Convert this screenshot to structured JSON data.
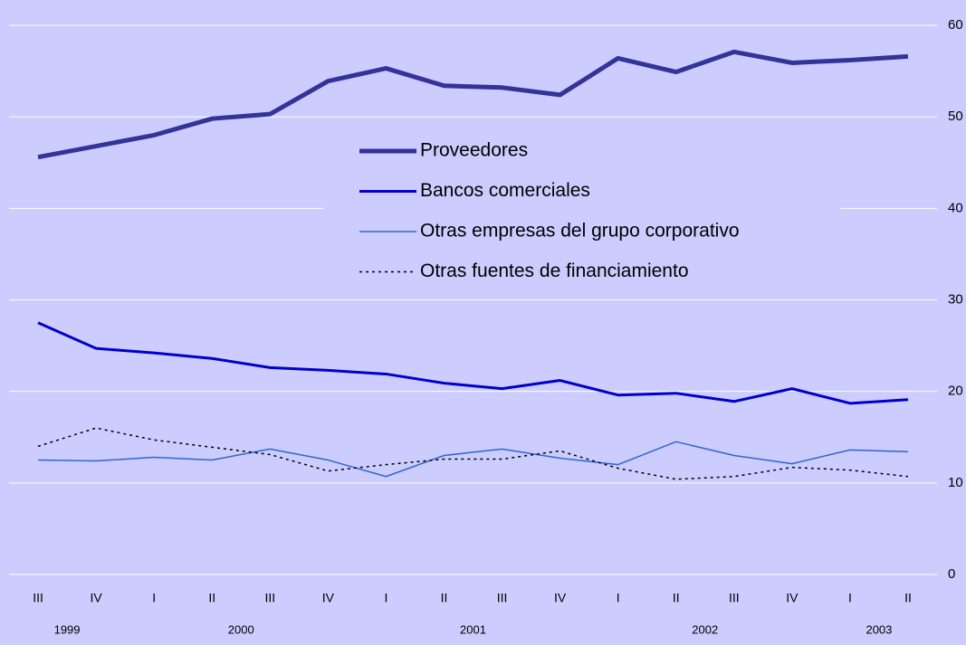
{
  "chart_data": {
    "type": "line",
    "categories": [
      "III",
      "IV",
      "I",
      "II",
      "III",
      "IV",
      "I",
      "II",
      "III",
      "IV",
      "I",
      "II",
      "III",
      "IV",
      "I",
      "II"
    ],
    "year_labels": [
      "1999",
      "2000",
      "2001",
      "2002",
      "2003"
    ],
    "series": [
      {
        "name": "Proveedores",
        "color": "#333399",
        "values": [
          45.6,
          46.8,
          48.0,
          49.8,
          50.3,
          53.9,
          55.3,
          53.4,
          53.2,
          52.4,
          56.4,
          54.9,
          57.1,
          55.9,
          56.2,
          56.6
        ]
      },
      {
        "name": "Bancos comerciales",
        "color": "#0000cc",
        "values": [
          27.5,
          24.7,
          24.2,
          23.6,
          22.6,
          22.3,
          21.9,
          20.9,
          20.3,
          21.2,
          19.6,
          19.8,
          18.9,
          20.3,
          18.7,
          19.1
        ]
      },
      {
        "name": "Otras empresas del grupo corporativo",
        "color": "#3366cc",
        "values": [
          12.5,
          12.4,
          12.8,
          12.5,
          13.7,
          12.5,
          10.7,
          13.0,
          13.7,
          12.7,
          12.0,
          14.5,
          13.0,
          12.1,
          13.6,
          13.4
        ]
      },
      {
        "name": "Otras fuentes de financiamiento",
        "color": "#000000",
        "dashed": true,
        "values": [
          14.0,
          16.0,
          14.7,
          13.9,
          13.1,
          11.3,
          12.0,
          12.6,
          12.6,
          13.5,
          11.6,
          10.4,
          10.7,
          11.7,
          11.4,
          10.7
        ]
      }
    ],
    "ylim": [
      0,
      60
    ],
    "yticks": [
      0,
      10,
      20,
      30,
      40,
      50,
      60
    ],
    "y_axis_side": "right",
    "grid": true
  }
}
